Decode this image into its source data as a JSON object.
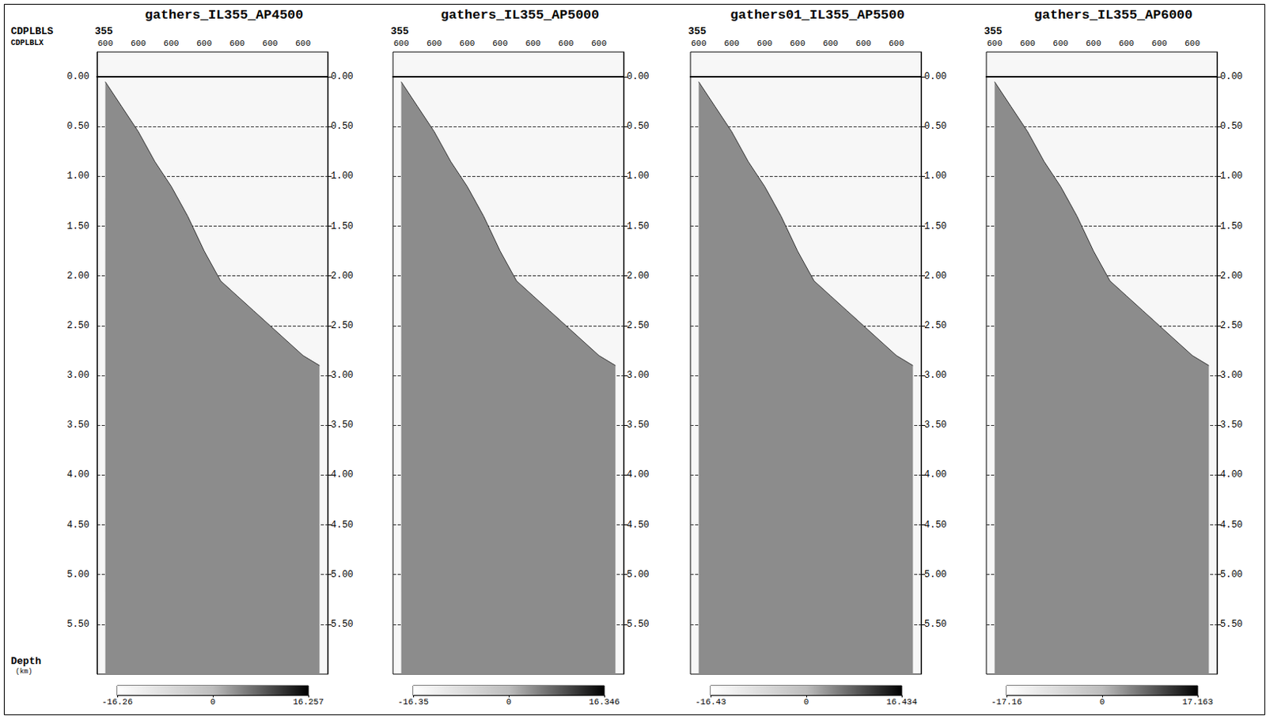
{
  "chart_data": [
    {
      "type": "area",
      "title": "gathers_IL355_AP4500",
      "row_labels": [
        "CDPLBLS",
        "CDPLBLX"
      ],
      "inline": "355",
      "ylabel": "Depth",
      "ylabel_unit": "(km)",
      "categories": [
        "600",
        null,
        "600",
        null,
        "600",
        null,
        "600",
        null,
        "600",
        null,
        "600",
        null,
        "600",
        null
      ],
      "values": [
        0.05,
        0.3,
        0.55,
        0.85,
        1.1,
        1.4,
        1.75,
        2.05,
        2.2,
        2.35,
        2.5,
        2.65,
        2.8,
        2.9
      ],
      "color": "#8c8c8c",
      "ylim": [
        -0.25,
        6.0
      ],
      "yticks": [
        {
          "value": 0,
          "label": "0.00"
        },
        {
          "value": 0.5,
          "label": "0.50"
        },
        {
          "value": 1,
          "label": "1.00"
        },
        {
          "value": 1.5,
          "label": "1.50"
        },
        {
          "value": 2,
          "label": "2.00"
        },
        {
          "value": 2.5,
          "label": "2.50"
        },
        {
          "value": 3,
          "label": "3.00"
        },
        {
          "value": 3.5,
          "label": "3.50"
        },
        {
          "value": 4,
          "label": "4.00"
        },
        {
          "value": 4.5,
          "label": "4.50"
        },
        {
          "value": 5,
          "label": "5.00"
        },
        {
          "value": 5.5,
          "label": "5.50"
        }
      ],
      "grid": true,
      "colorbar": {
        "range": [
          -16.26,
          16.257
        ],
        "ticks": [
          -16.26,
          0,
          16.257
        ]
      }
    },
    {
      "type": "area",
      "title": "gathers_IL355_AP5000",
      "inline": "355",
      "categories": [
        "600",
        null,
        "600",
        null,
        "600",
        null,
        "600",
        null,
        "600",
        null,
        "600",
        null,
        "600",
        null
      ],
      "values": [
        0.05,
        0.3,
        0.55,
        0.85,
        1.1,
        1.4,
        1.75,
        2.05,
        2.2,
        2.35,
        2.5,
        2.65,
        2.8,
        2.9
      ],
      "color": "#8c8c8c",
      "ylim": [
        -0.25,
        6.0
      ],
      "yticks": [
        {
          "value": 0,
          "label": "0.00"
        },
        {
          "value": 0.5,
          "label": "0.50"
        },
        {
          "value": 1,
          "label": "1.00"
        },
        {
          "value": 1.5,
          "label": "1.50"
        },
        {
          "value": 2,
          "label": "2.00"
        },
        {
          "value": 2.5,
          "label": "2.50"
        },
        {
          "value": 3,
          "label": "3.00"
        },
        {
          "value": 3.5,
          "label": "3.50"
        },
        {
          "value": 4,
          "label": "4.00"
        },
        {
          "value": 4.5,
          "label": "4.50"
        },
        {
          "value": 5,
          "label": "5.00"
        },
        {
          "value": 5.5,
          "label": "5.50"
        }
      ],
      "grid": true,
      "colorbar": {
        "range": [
          -16.35,
          16.346
        ],
        "ticks": [
          -16.35,
          0,
          16.346
        ]
      }
    },
    {
      "type": "area",
      "title": "gathers01_IL355_AP5500",
      "inline": "355",
      "categories": [
        "600",
        null,
        "600",
        null,
        "600",
        null,
        "600",
        null,
        "600",
        null,
        "600",
        null,
        "600",
        null
      ],
      "values": [
        0.05,
        0.3,
        0.55,
        0.85,
        1.1,
        1.4,
        1.75,
        2.05,
        2.2,
        2.35,
        2.5,
        2.65,
        2.8,
        2.9
      ],
      "color": "#8c8c8c",
      "ylim": [
        -0.25,
        6.0
      ],
      "yticks": [
        {
          "value": 0,
          "label": "0.00"
        },
        {
          "value": 0.5,
          "label": "0.50"
        },
        {
          "value": 1,
          "label": "1.00"
        },
        {
          "value": 1.5,
          "label": "1.50"
        },
        {
          "value": 2,
          "label": "2.00"
        },
        {
          "value": 2.5,
          "label": "2.50"
        },
        {
          "value": 3,
          "label": "3.00"
        },
        {
          "value": 3.5,
          "label": "3.50"
        },
        {
          "value": 4,
          "label": "4.00"
        },
        {
          "value": 4.5,
          "label": "4.50"
        },
        {
          "value": 5,
          "label": "5.00"
        },
        {
          "value": 5.5,
          "label": "5.50"
        }
      ],
      "grid": true,
      "colorbar": {
        "range": [
          -16.43,
          16.434
        ],
        "ticks": [
          -16.43,
          0,
          16.434
        ]
      }
    },
    {
      "type": "area",
      "title": "gathers_IL355_AP6000",
      "inline": "355",
      "categories": [
        "600",
        null,
        "600",
        null,
        "600",
        null,
        "600",
        null,
        "600",
        null,
        "600",
        null,
        "600",
        null
      ],
      "values": [
        0.05,
        0.3,
        0.55,
        0.85,
        1.1,
        1.4,
        1.75,
        2.05,
        2.2,
        2.35,
        2.5,
        2.65,
        2.8,
        2.9
      ],
      "color": "#8c8c8c",
      "ylim": [
        -0.25,
        6.0
      ],
      "yticks": [
        {
          "value": 0,
          "label": "0.00"
        },
        {
          "value": 0.5,
          "label": "0.50"
        },
        {
          "value": 1,
          "label": "1.00"
        },
        {
          "value": 1.5,
          "label": "1.50"
        },
        {
          "value": 2,
          "label": "2.00"
        },
        {
          "value": 2.5,
          "label": "2.50"
        },
        {
          "value": 3,
          "label": "3.00"
        },
        {
          "value": 3.5,
          "label": "3.50"
        },
        {
          "value": 4,
          "label": "4.00"
        },
        {
          "value": 4.5,
          "label": "4.50"
        },
        {
          "value": 5,
          "label": "5.00"
        },
        {
          "value": 5.5,
          "label": "5.50"
        }
      ],
      "grid": true,
      "colorbar": {
        "range": [
          -17.16,
          17.163
        ],
        "ticks": [
          -17.16,
          0,
          17.163
        ]
      }
    }
  ]
}
